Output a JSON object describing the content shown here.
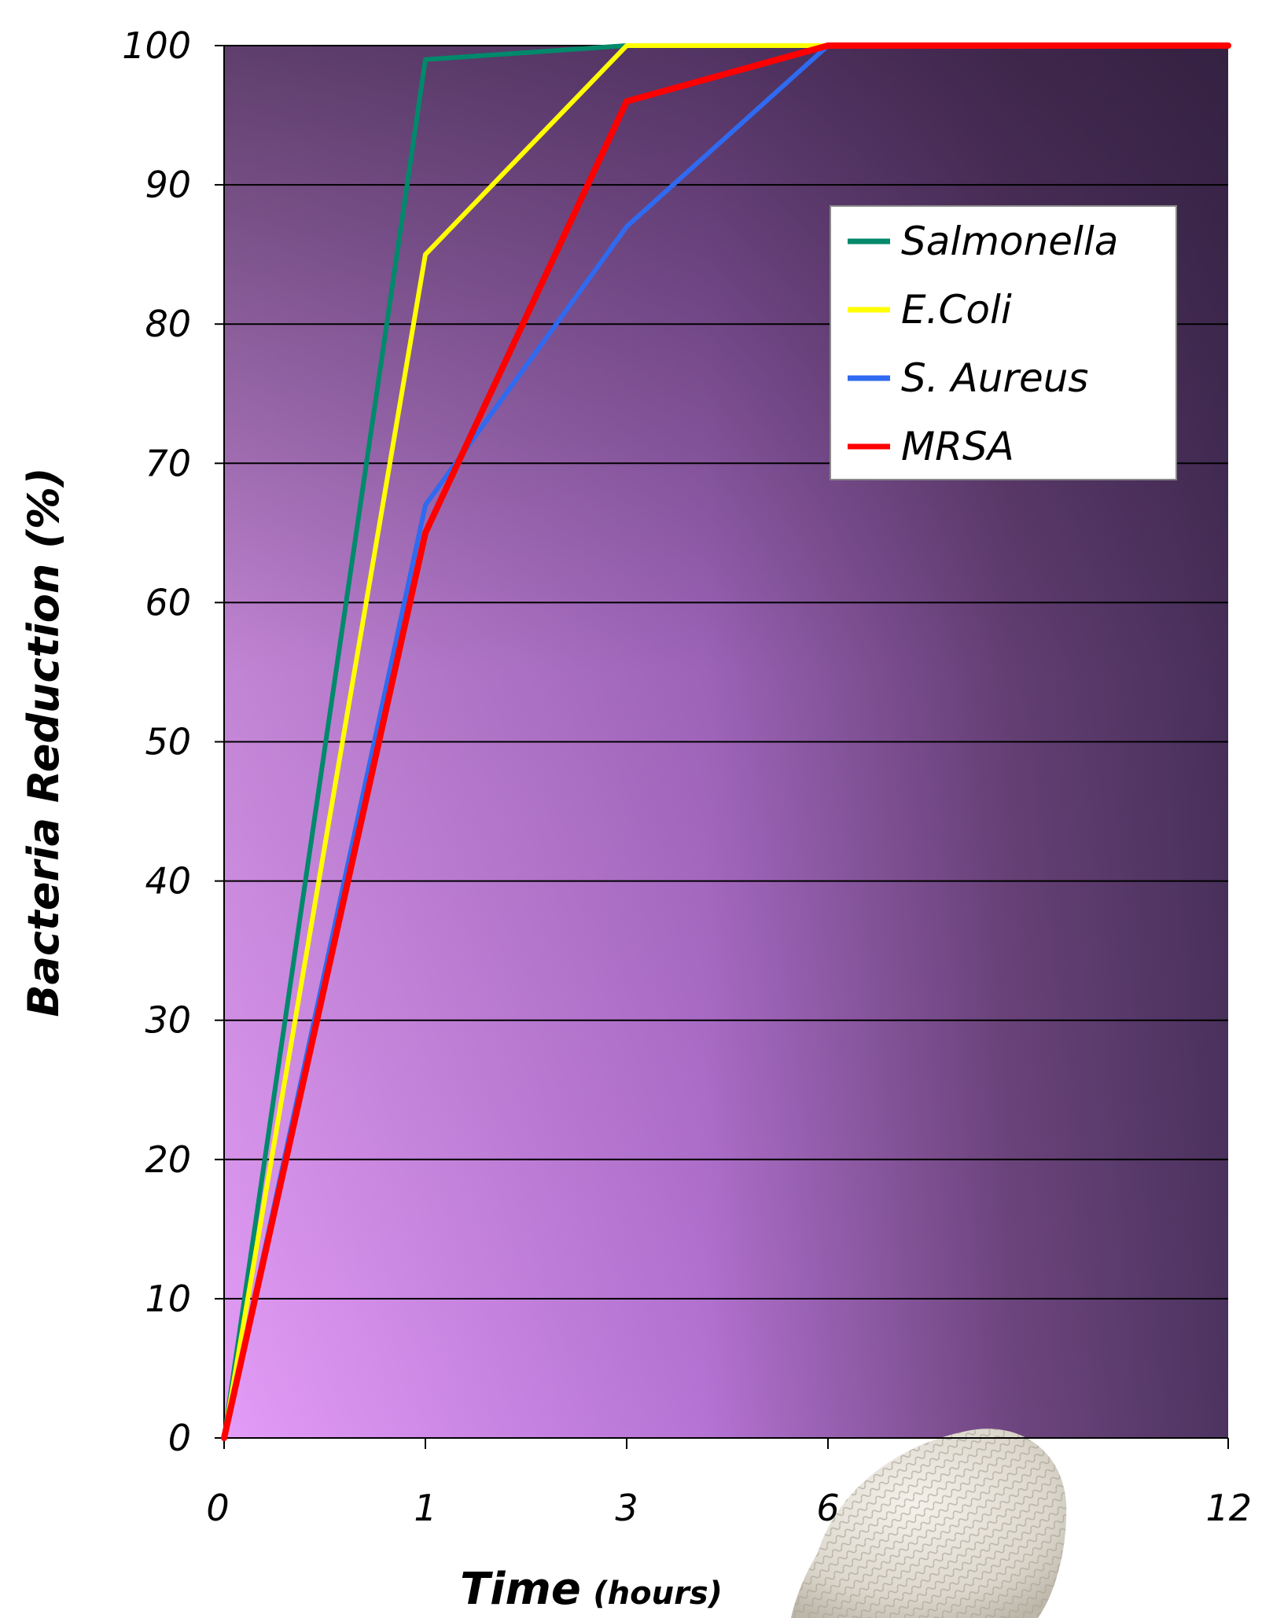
{
  "chart_data": {
    "type": "line",
    "title": "",
    "xlabel": "Time",
    "xlabel_unit": "(hours)",
    "ylabel": "Bacteria Reduction (%)",
    "x": [
      "0",
      "1",
      "3",
      "6",
      "12"
    ],
    "x_tick_labels": [
      "0",
      "1",
      "3",
      "6",
      "12"
    ],
    "ylim": [
      0,
      100
    ],
    "y_ticks": [
      0,
      10,
      20,
      30,
      40,
      50,
      60,
      70,
      80,
      90,
      100
    ],
    "grid": true,
    "legend_position": "top-right",
    "series": [
      {
        "name": "Salmonella",
        "color": "#00896b",
        "values": [
          0,
          99,
          100,
          100,
          100
        ]
      },
      {
        "name": "E.Coli",
        "color": "#ffff00",
        "values": [
          0,
          85,
          100,
          100,
          100
        ]
      },
      {
        "name": "S. Aureus",
        "color": "#2f6af0",
        "values": [
          0,
          67,
          87,
          100,
          100
        ]
      },
      {
        "name": "MRSA",
        "color": "#ff0000",
        "values": [
          0,
          65,
          96,
          100,
          100
        ]
      }
    ],
    "colors": {
      "plot_bg_dark": "#4a3159",
      "plot_bg_light": "#e19af5",
      "grid": "#000000"
    },
    "decoration": "knitted-glove-photo"
  }
}
